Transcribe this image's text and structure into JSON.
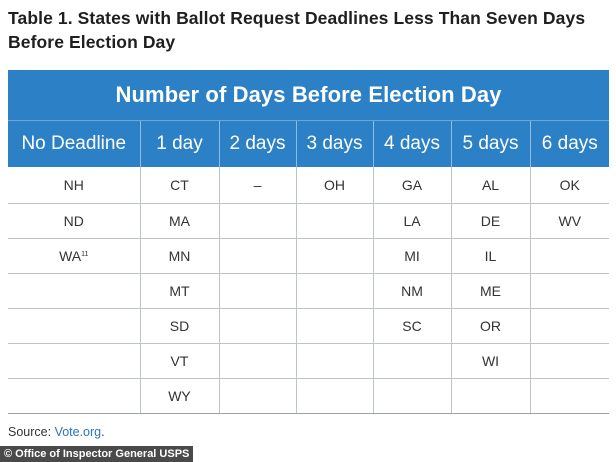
{
  "title": "Table 1. States with Ballot Request Deadlines Less Than Seven Days Before Election Day",
  "table": {
    "group_header": "Number of Days Before Election Day",
    "columns": [
      "No Deadline",
      "1 day",
      "2 days",
      "3 days",
      "4 days",
      "5 days",
      "6 days"
    ],
    "rows": [
      [
        "NH",
        "CT",
        "–",
        "OH",
        "GA",
        "AL",
        "OK"
      ],
      [
        "ND",
        "MA",
        "",
        "",
        "LA",
        "DE",
        "WV"
      ],
      [
        "WA",
        "MN",
        "",
        "",
        "MI",
        "IL",
        ""
      ],
      [
        "",
        "MT",
        "",
        "",
        "NM",
        "ME",
        ""
      ],
      [
        "",
        "SD",
        "",
        "",
        "SC",
        "OR",
        ""
      ],
      [
        "",
        "VT",
        "",
        "",
        "",
        "WI",
        ""
      ],
      [
        "",
        "WY",
        "",
        "",
        "",
        "",
        ""
      ]
    ],
    "footnote_marker": "11"
  },
  "source": {
    "label": "Source: ",
    "link_text": "Vote.org",
    "suffix": "."
  },
  "credit": "© Office of Inspector General USPS",
  "colors": {
    "header_blue": "#2c80c6",
    "link_blue": "#2c74b8"
  }
}
